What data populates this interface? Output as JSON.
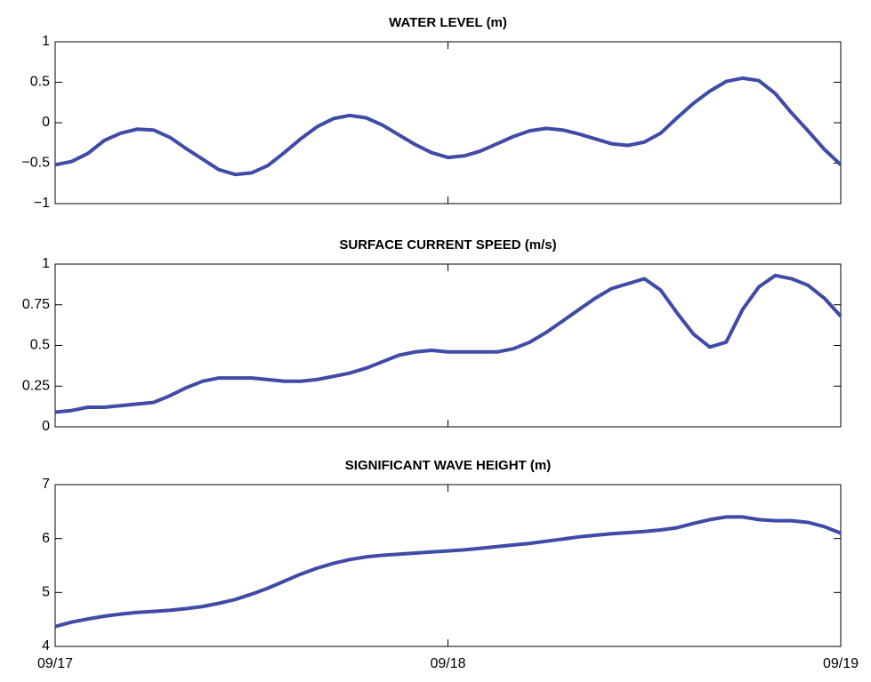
{
  "chart_data": [
    {
      "type": "line",
      "title": "WATER LEVEL (m)",
      "color": "#3f4ba6",
      "ylim": [
        -1,
        1
      ],
      "yticks": [
        {
          "value": -1,
          "label": "−1"
        },
        {
          "value": -0.5,
          "label": "−0.5"
        },
        0,
        0.5,
        1
      ],
      "values": [
        -0.52,
        -0.48,
        -0.38,
        -0.22,
        -0.13,
        -0.08,
        -0.09,
        -0.18,
        -0.32,
        -0.45,
        -0.58,
        -0.64,
        -0.62,
        -0.53,
        -0.37,
        -0.2,
        -0.05,
        0.05,
        0.09,
        0.06,
        -0.03,
        -0.15,
        -0.27,
        -0.37,
        -0.43,
        -0.41,
        -0.35,
        -0.26,
        -0.17,
        -0.1,
        -0.07,
        -0.09,
        -0.14,
        -0.2,
        -0.26,
        -0.28,
        -0.24,
        -0.13,
        0.06,
        0.24,
        0.39,
        0.51,
        0.55,
        0.52,
        0.36,
        0.12,
        -0.1,
        -0.33,
        -0.52
      ]
    },
    {
      "type": "line",
      "title": "SURFACE CURRENT SPEED (m/s)",
      "color": "#3f4ba6",
      "ylim": [
        0,
        1
      ],
      "yticks": [
        0,
        0.25,
        0.5,
        0.75,
        1
      ],
      "values": [
        0.09,
        0.1,
        0.12,
        0.12,
        0.13,
        0.14,
        0.15,
        0.19,
        0.24,
        0.28,
        0.3,
        0.3,
        0.3,
        0.29,
        0.28,
        0.28,
        0.29,
        0.31,
        0.33,
        0.36,
        0.4,
        0.44,
        0.46,
        0.47,
        0.46,
        0.46,
        0.46,
        0.46,
        0.48,
        0.52,
        0.58,
        0.65,
        0.72,
        0.79,
        0.85,
        0.88,
        0.91,
        0.84,
        0.7,
        0.57,
        0.49,
        0.52,
        0.72,
        0.86,
        0.93,
        0.91,
        0.87,
        0.79,
        0.68
      ]
    },
    {
      "type": "line",
      "title": "SIGNIFICANT WAVE HEIGHT (m)",
      "color": "#3f4ba6",
      "ylim": [
        4,
        7
      ],
      "yticks": [
        4,
        5,
        6,
        7
      ],
      "categories": [
        "09/17",
        null,
        null,
        null,
        null,
        null,
        null,
        null,
        null,
        null,
        null,
        null,
        null,
        null,
        null,
        null,
        null,
        null,
        null,
        null,
        null,
        null,
        null,
        null,
        "09/18",
        null,
        null,
        null,
        null,
        null,
        null,
        null,
        null,
        null,
        null,
        null,
        null,
        null,
        null,
        null,
        null,
        null,
        null,
        null,
        null,
        null,
        null,
        null,
        "09/19"
      ],
      "values": [
        4.37,
        4.45,
        4.51,
        4.56,
        4.6,
        4.63,
        4.65,
        4.67,
        4.7,
        4.74,
        4.8,
        4.87,
        4.97,
        5.08,
        5.21,
        5.34,
        5.45,
        5.54,
        5.61,
        5.66,
        5.69,
        5.71,
        5.73,
        5.75,
        5.77,
        5.79,
        5.82,
        5.85,
        5.88,
        5.91,
        5.95,
        5.99,
        6.03,
        6.06,
        6.09,
        6.11,
        6.13,
        6.16,
        6.2,
        6.28,
        6.35,
        6.4,
        6.4,
        6.35,
        6.33,
        6.33,
        6.3,
        6.22,
        6.1
      ]
    }
  ]
}
